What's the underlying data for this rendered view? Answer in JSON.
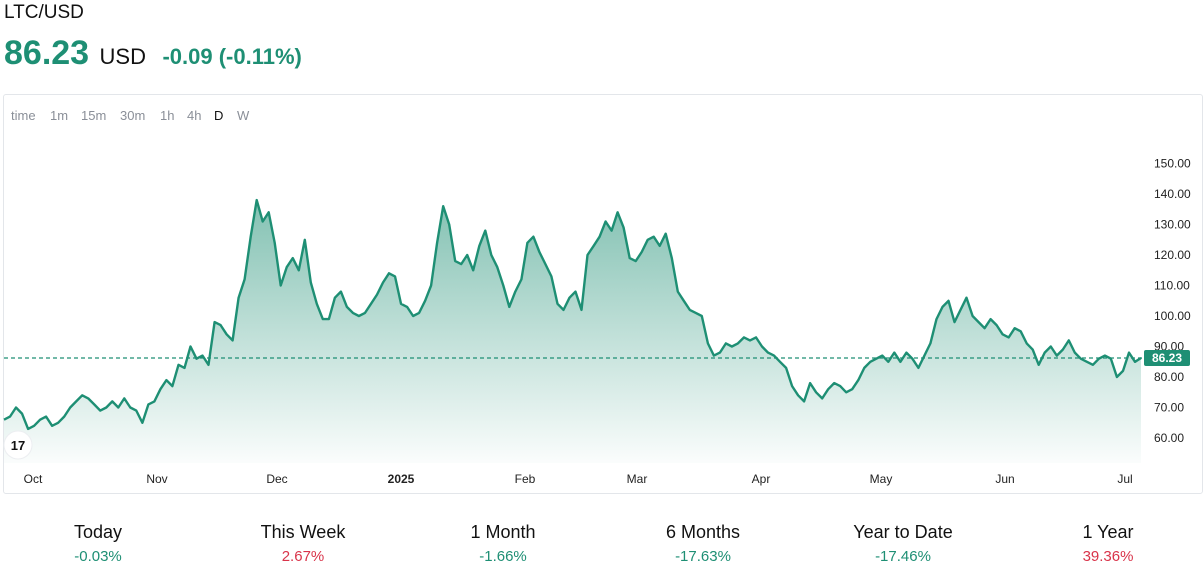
{
  "header": {
    "pair": "LTC/USD",
    "price": "86.23",
    "currency": "USD",
    "change": "-0.09 (-0.11%)"
  },
  "timeframes": [
    {
      "label": "time",
      "active": false
    },
    {
      "label": "1m",
      "active": false
    },
    {
      "label": "15m",
      "active": false
    },
    {
      "label": "30m",
      "active": false
    },
    {
      "label": "1h",
      "active": false
    },
    {
      "label": "4h",
      "active": false
    },
    {
      "label": "D",
      "active": true
    },
    {
      "label": "W",
      "active": false
    }
  ],
  "chart_data": {
    "type": "area",
    "y_ticks": [
      60,
      70,
      80,
      90,
      100,
      110,
      120,
      130,
      140,
      150
    ],
    "y_tick_labels": [
      "60.00",
      "70.00",
      "80.00",
      "90.00",
      "100.00",
      "110.00",
      "120.00",
      "130.00",
      "140.00",
      "150.00"
    ],
    "ylim": [
      51,
      160
    ],
    "x_ticks": [
      "Oct",
      "Nov",
      "Dec",
      "2025",
      "Feb",
      "Mar",
      "Apr",
      "May",
      "Jun",
      "Jul"
    ],
    "last_price_label": "86.23",
    "last_price": 86.23,
    "grid": false,
    "colors": {
      "line": "#1e8f74",
      "fill_top": "#1e8f74",
      "price_line": "#1e8f74"
    },
    "series": [
      {
        "values": [
          66,
          67,
          70,
          68,
          63,
          64,
          66,
          67,
          64,
          65,
          67,
          70,
          72,
          74,
          73,
          71,
          69,
          70,
          72,
          70,
          73,
          70,
          69,
          65,
          71,
          72,
          76,
          79,
          77,
          84,
          83,
          90,
          86,
          87,
          84,
          98,
          97,
          94,
          92,
          106,
          112,
          126,
          138,
          131,
          134,
          124,
          110,
          116,
          119,
          115,
          125,
          111,
          104,
          99,
          99,
          106,
          108,
          103,
          101,
          100,
          101,
          104,
          107,
          111,
          114,
          113,
          104,
          103,
          100,
          101,
          105,
          110,
          124,
          136,
          130,
          118,
          117,
          120,
          115,
          123,
          128,
          120,
          116,
          110,
          103,
          108,
          112,
          124,
          126,
          121,
          117,
          113,
          104,
          102,
          106,
          108,
          102,
          120,
          123,
          126,
          131,
          128,
          134,
          129,
          119,
          118,
          121,
          125,
          126,
          123,
          127,
          119,
          108,
          105,
          102,
          101,
          100,
          91,
          87,
          88,
          91,
          90,
          91,
          93,
          92,
          93,
          90,
          88,
          87,
          85,
          83,
          77,
          74,
          72,
          78,
          75,
          73,
          76,
          78,
          77,
          75,
          76,
          79,
          83,
          85,
          86,
          87,
          85,
          88,
          85,
          88,
          86,
          83,
          87,
          91,
          99,
          103,
          105,
          98,
          102,
          106,
          100,
          98,
          96,
          99,
          97,
          94,
          93,
          96,
          95,
          91,
          89,
          84,
          88,
          90,
          87,
          89,
          92,
          88,
          86,
          85,
          84,
          86,
          87,
          86,
          80,
          82,
          88,
          85,
          86.23
        ]
      }
    ]
  },
  "stats": [
    {
      "label": "Today",
      "value": "-0.03%",
      "color": "#1e8f74"
    },
    {
      "label": "This Week",
      "value": "2.67%",
      "color": "#d9344a"
    },
    {
      "label": "1 Month",
      "value": "-1.66%",
      "color": "#1e8f74"
    },
    {
      "label": "6 Months",
      "value": "-17.63%",
      "color": "#1e8f74"
    },
    {
      "label": "Year to Date",
      "value": "-17.46%",
      "color": "#1e8f74"
    },
    {
      "label": "1 Year",
      "value": "39.36%",
      "color": "#d9344a"
    }
  ]
}
